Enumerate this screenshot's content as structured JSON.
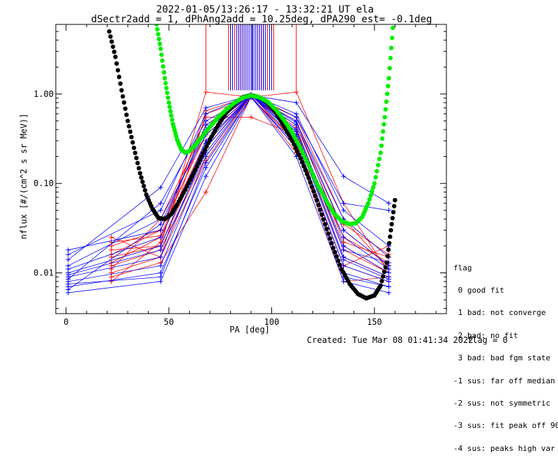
{
  "chart_data": {
    "type": "scatter",
    "title_line1": "2022-01-05/13:26:17 - 13:32:21 UT ela",
    "title_line2": "dSectr2add = 1, dPhAng2add = 10.25deg, dPA290_est=  -0.1deg",
    "xlabel": "PA [deg]",
    "ylabel": "nflux [#/(cm^2 s sr MeV)]",
    "y_scale": "log",
    "xlim": [
      -5,
      185
    ],
    "ylim": [
      0.0035,
      6.0
    ],
    "x_ticks": [
      0,
      50,
      100,
      150
    ],
    "y_ticks": [
      {
        "value": 0.01,
        "label": "0.01"
      },
      {
        "value": 0.1,
        "label": "0.10"
      },
      {
        "value": 1.0,
        "label": "1.00"
      }
    ],
    "series": [
      {
        "color": "#ff0000",
        "marker": "plus",
        "profiles": [
          [
            [
              22,
              0.02
            ],
            [
              46,
              0.03
            ],
            [
              68,
              0.35
            ],
            [
              90,
              0.96
            ],
            [
              112,
              0.4
            ],
            [
              135,
              0.02
            ],
            [
              157,
              0.01
            ]
          ],
          [
            [
              22,
              0.015
            ],
            [
              46,
              0.02
            ],
            [
              68,
              0.25
            ],
            [
              90,
              0.98
            ],
            [
              112,
              0.45
            ],
            [
              135,
              0.03
            ],
            [
              157,
              0.012
            ]
          ],
          [
            [
              22,
              0.013
            ],
            [
              46,
              0.025
            ],
            [
              68,
              0.3
            ],
            [
              90,
              0.95
            ],
            [
              112,
              0.38
            ],
            [
              135,
              0.015
            ],
            [
              157,
              0.009
            ]
          ],
          [
            [
              22,
              0.012
            ],
            [
              46,
              0.018
            ],
            [
              68,
              0.2
            ],
            [
              90,
              0.97
            ],
            [
              112,
              0.5
            ],
            [
              135,
              0.022
            ],
            [
              157,
              0.015
            ]
          ],
          [
            [
              22,
              0.025
            ],
            [
              46,
              0.015
            ],
            [
              68,
              0.6
            ],
            [
              90,
              0.9
            ],
            [
              112,
              0.3
            ],
            [
              135,
              0.012
            ],
            [
              157,
              0.02
            ]
          ],
          [
            [
              22,
              0.011
            ],
            [
              46,
              0.04
            ],
            [
              68,
              0.45
            ],
            [
              90,
              0.99
            ],
            [
              112,
              0.55
            ],
            [
              135,
              0.04
            ],
            [
              157,
              0.011
            ]
          ],
          [
            [
              22,
              0.018
            ],
            [
              46,
              0.02
            ],
            [
              68,
              1.05
            ],
            [
              90,
              0.92
            ],
            [
              112,
              1.05
            ],
            [
              135,
              0.06
            ],
            [
              157,
              0.01
            ]
          ],
          [
            [
              22,
              0.009
            ],
            [
              46,
              0.013
            ],
            [
              68,
              0.08
            ],
            [
              90,
              0.94
            ],
            [
              112,
              0.25
            ],
            [
              135,
              0.008
            ],
            [
              157,
              0.009
            ]
          ],
          [
            [
              22,
              0.016
            ],
            [
              46,
              0.03
            ],
            [
              68,
              0.55
            ],
            [
              90,
              0.55
            ],
            [
              112,
              0.35
            ],
            [
              135,
              0.025
            ],
            [
              157,
              0.013
            ]
          ],
          [
            [
              22,
              0.01
            ],
            [
              46,
              0.015
            ],
            [
              68,
              0.18
            ],
            [
              90,
              0.96
            ],
            [
              112,
              0.42
            ],
            [
              135,
              0.018
            ],
            [
              157,
              0.01
            ]
          ],
          [
            [
              22,
              0.022
            ],
            [
              46,
              0.026
            ],
            [
              68,
              0.4
            ],
            [
              90,
              0.98
            ],
            [
              112,
              0.28
            ],
            [
              135,
              0.012
            ],
            [
              157,
              0.008
            ]
          ],
          [
            [
              22,
              0.008
            ],
            [
              46,
              0.022
            ],
            [
              68,
              0.65
            ],
            [
              90,
              0.95
            ],
            [
              112,
              0.22
            ],
            [
              135,
              0.035
            ],
            [
              157,
              0.016
            ]
          ]
        ]
      },
      {
        "color": "#0000ff",
        "marker": "plus",
        "profiles": [
          [
            [
              1,
              0.018
            ],
            [
              46,
              0.03
            ],
            [
              68,
              0.45
            ],
            [
              90,
              0.95
            ],
            [
              112,
              0.5
            ],
            [
              135,
              0.03
            ],
            [
              157,
              0.012
            ]
          ],
          [
            [
              1,
              0.01
            ],
            [
              46,
              0.02
            ],
            [
              68,
              0.3
            ],
            [
              90,
              0.97
            ],
            [
              112,
              0.4
            ],
            [
              135,
              0.02
            ],
            [
              157,
              0.01
            ]
          ],
          [
            [
              1,
              0.009
            ],
            [
              46,
              0.015
            ],
            [
              68,
              0.25
            ],
            [
              90,
              0.96
            ],
            [
              112,
              0.35
            ],
            [
              135,
              0.015
            ],
            [
              157,
              0.009
            ]
          ],
          [
            [
              1,
              0.008
            ],
            [
              46,
              0.012
            ],
            [
              68,
              0.2
            ],
            [
              90,
              0.98
            ],
            [
              112,
              0.3
            ],
            [
              135,
              0.012
            ],
            [
              157,
              0.008
            ]
          ],
          [
            [
              1,
              0.007
            ],
            [
              46,
              0.01
            ],
            [
              68,
              0.15
            ],
            [
              90,
              0.94
            ],
            [
              112,
              0.25
            ],
            [
              135,
              0.01
            ],
            [
              157,
              0.007
            ]
          ],
          [
            [
              1,
              0.006
            ],
            [
              46,
              0.008
            ],
            [
              68,
              0.12
            ],
            [
              90,
              0.93
            ],
            [
              112,
              0.2
            ],
            [
              135,
              0.008
            ],
            [
              157,
              0.006
            ]
          ],
          [
            [
              1,
              0.016
            ],
            [
              46,
              0.05
            ],
            [
              68,
              0.6
            ],
            [
              90,
              0.99
            ],
            [
              112,
              0.6
            ],
            [
              135,
              0.05
            ],
            [
              157,
              0.02
            ]
          ],
          [
            [
              1,
              0.014
            ],
            [
              46,
              0.09
            ],
            [
              68,
              0.7
            ],
            [
              90,
              0.97
            ],
            [
              112,
              0.8
            ],
            [
              135,
              0.12
            ],
            [
              157,
              0.06
            ]
          ],
          [
            [
              1,
              0.012
            ],
            [
              46,
              0.04
            ],
            [
              68,
              0.35
            ],
            [
              90,
              0.95
            ],
            [
              112,
              0.45
            ],
            [
              135,
              0.025
            ],
            [
              157,
              0.011
            ]
          ],
          [
            [
              1,
              0.011
            ],
            [
              46,
              0.025
            ],
            [
              68,
              0.28
            ],
            [
              90,
              0.96
            ],
            [
              112,
              0.38
            ],
            [
              135,
              0.018
            ],
            [
              157,
              0.013
            ]
          ],
          [
            [
              1,
              0.0095
            ],
            [
              46,
              0.018
            ],
            [
              68,
              0.22
            ],
            [
              90,
              0.98
            ],
            [
              112,
              0.33
            ],
            [
              135,
              0.014
            ],
            [
              157,
              0.0085
            ]
          ],
          [
            [
              1,
              0.0085
            ],
            [
              46,
              0.06
            ],
            [
              68,
              0.5
            ],
            [
              90,
              0.94
            ],
            [
              112,
              0.55
            ],
            [
              135,
              0.06
            ],
            [
              157,
              0.05
            ]
          ],
          [
            [
              1,
              0.0075
            ],
            [
              46,
              0.009
            ],
            [
              68,
              0.17
            ],
            [
              90,
              0.92
            ],
            [
              112,
              0.27
            ],
            [
              135,
              0.009
            ],
            [
              157,
              0.007
            ]
          ],
          [
            [
              1,
              0.0065
            ],
            [
              46,
              0.035
            ],
            [
              68,
              0.4
            ],
            [
              90,
              0.96
            ],
            [
              112,
              0.48
            ],
            [
              135,
              0.04
            ],
            [
              157,
              0.015
            ]
          ]
        ]
      }
    ],
    "fit_curves": [
      {
        "color": "#000000",
        "points": [
          [
            21,
            5.0
          ],
          [
            24,
            2.6
          ],
          [
            27,
            1.1
          ],
          [
            30,
            0.5
          ],
          [
            33,
            0.25
          ],
          [
            36,
            0.13
          ],
          [
            39,
            0.075
          ],
          [
            42,
            0.052
          ],
          [
            45,
            0.041
          ],
          [
            48,
            0.04
          ],
          [
            51,
            0.045
          ],
          [
            54,
            0.058
          ],
          [
            58,
            0.085
          ],
          [
            62,
            0.13
          ],
          [
            66,
            0.2
          ],
          [
            70,
            0.31
          ],
          [
            74,
            0.45
          ],
          [
            78,
            0.62
          ],
          [
            82,
            0.78
          ],
          [
            86,
            0.92
          ],
          [
            90,
            0.97
          ],
          [
            94,
            0.92
          ],
          [
            98,
            0.8
          ],
          [
            102,
            0.62
          ],
          [
            106,
            0.44
          ],
          [
            110,
            0.3
          ],
          [
            114,
            0.19
          ],
          [
            118,
            0.115
          ],
          [
            122,
            0.065
          ],
          [
            126,
            0.035
          ],
          [
            130,
            0.019
          ],
          [
            134,
            0.011
          ],
          [
            138,
            0.0075
          ],
          [
            142,
            0.0058
          ],
          [
            146,
            0.0052
          ],
          [
            150,
            0.0056
          ],
          [
            153,
            0.0072
          ],
          [
            156,
            0.013
          ],
          [
            158,
            0.03
          ],
          [
            160,
            0.065
          ]
        ]
      },
      {
        "color": "#00ee00",
        "points": [
          [
            44,
            6.0
          ],
          [
            46,
            3.2
          ],
          [
            48,
            1.5
          ],
          [
            50,
            0.8
          ],
          [
            52,
            0.46
          ],
          [
            54,
            0.31
          ],
          [
            56,
            0.24
          ],
          [
            58,
            0.22
          ],
          [
            60,
            0.23
          ],
          [
            63,
            0.27
          ],
          [
            66,
            0.33
          ],
          [
            70,
            0.43
          ],
          [
            74,
            0.55
          ],
          [
            78,
            0.67
          ],
          [
            82,
            0.8
          ],
          [
            86,
            0.91
          ],
          [
            90,
            0.96
          ],
          [
            94,
            0.92
          ],
          [
            98,
            0.82
          ],
          [
            102,
            0.67
          ],
          [
            106,
            0.51
          ],
          [
            110,
            0.37
          ],
          [
            114,
            0.25
          ],
          [
            118,
            0.16
          ],
          [
            122,
            0.1
          ],
          [
            126,
            0.068
          ],
          [
            130,
            0.047
          ],
          [
            134,
            0.038
          ],
          [
            138,
            0.035
          ],
          [
            141,
            0.036
          ],
          [
            144,
            0.042
          ],
          [
            147,
            0.06
          ],
          [
            150,
            0.1
          ],
          [
            153,
            0.22
          ],
          [
            155,
            0.55
          ],
          [
            157,
            1.5
          ],
          [
            159,
            5.5
          ]
        ]
      }
    ],
    "spikes": [
      {
        "color": "#ff0000",
        "x": [
          68,
          79,
          80,
          82,
          84,
          85,
          86,
          87,
          88,
          89,
          90,
          91,
          92,
          93,
          94,
          95,
          96,
          98,
          101,
          112
        ]
      },
      {
        "color": "#0000ff",
        "x": [
          80,
          81,
          83,
          84,
          85,
          86,
          87,
          88,
          89,
          90,
          90.5,
          91,
          92,
          93,
          94,
          95,
          96,
          97,
          99,
          100
        ]
      }
    ],
    "legend": {
      "title": "flag",
      "entries": [
        " 0 good fit",
        " 1 bad: not converge",
        " 2 bad: no fit",
        " 3 bad: bad fgm state",
        "-1 sus: far off median",
        "-2 sus: not symmetric",
        "-3 sus: fit peak off 90",
        "-4 sus: peaks high var"
      ]
    },
    "footer": {
      "created": "Created: Tue Mar 08 01:41:34 2022",
      "flag": "flag = 0"
    }
  }
}
